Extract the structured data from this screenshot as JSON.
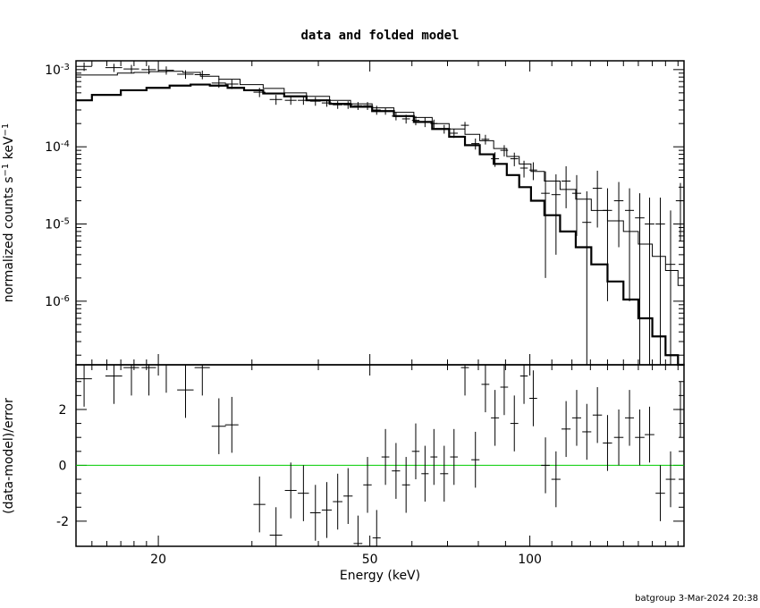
{
  "chart_data": {
    "type": "line",
    "title": "data and folded model",
    "footer": "batgroup  3-Mar-2024 20:38",
    "xlabel": "Energy (keV)",
    "xscale": "log",
    "xlim": [
      14,
      195
    ],
    "xticks": [
      {
        "v": 20,
        "label": "20"
      },
      {
        "v": 50,
        "label": "50"
      },
      {
        "v": 100,
        "label": "100"
      }
    ],
    "top_panel": {
      "ylabel": "normalized counts s^-1 keV^-1",
      "yscale": "log",
      "ylim": [
        1.5e-07,
        0.0013
      ],
      "yticks": [
        {
          "exp": -3,
          "v": 0.001
        },
        {
          "exp": -4,
          "v": 0.0001
        },
        {
          "exp": -5,
          "v": 1e-05
        },
        {
          "exp": -6,
          "v": 1e-06
        }
      ],
      "series": [
        {
          "style": "data crosses",
          "points": [
            [
              14.5,
              0.0011,
              0.5,
              0.00014
            ],
            [
              16.5,
              0.00106,
              0.6,
              0.00013
            ],
            [
              17.8,
              0.00102,
              0.6,
              0.00013
            ],
            [
              19.2,
              0.001,
              0.6,
              0.00013
            ],
            [
              20.7,
              0.00098,
              0.7,
              0.00012
            ],
            [
              22.5,
              0.00087,
              0.8,
              0.00011
            ],
            [
              24.2,
              0.00086,
              0.8,
              0.00011
            ],
            [
              26.0,
              0.00067,
              0.8,
              9e-05
            ],
            [
              27.5,
              0.00065,
              0.8,
              9e-05
            ],
            [
              31.0,
              0.00051,
              0.8,
              7e-05
            ],
            [
              33.3,
              0.00041,
              0.9,
              6e-05
            ],
            [
              35.5,
              0.0004,
              0.9,
              5e-05
            ],
            [
              37.5,
              0.0004,
              0.9,
              5e-05
            ],
            [
              39.5,
              0.00039,
              0.9,
              5e-05
            ],
            [
              41.5,
              0.00037,
              0.9,
              4e-05
            ],
            [
              43.5,
              0.00035,
              0.9,
              4e-05
            ],
            [
              45.5,
              0.00035,
              0.9,
              4e-05
            ],
            [
              47.5,
              0.00034,
              0.9,
              4e-05
            ],
            [
              49.5,
              0.00034,
              0.9,
              4e-05
            ],
            [
              51.5,
              0.0003,
              0.9,
              4e-05
            ],
            [
              53.5,
              0.00029,
              0.9,
              3e-05
            ],
            [
              56.0,
              0.00025,
              1,
              3e-05
            ],
            [
              58.5,
              0.00023,
              1,
              3e-05
            ],
            [
              61.0,
              0.00022,
              1,
              3e-05
            ],
            [
              63.5,
              0.00021,
              1,
              3e-05
            ],
            [
              66.0,
              0.0002,
              1,
              2.5e-05
            ],
            [
              69.0,
              0.00017,
              1.2,
              2.2e-05
            ],
            [
              72.0,
              0.00015,
              1.2,
              2e-05
            ],
            [
              75.5,
              0.00019,
              1.3,
              2e-05
            ],
            [
              79.0,
              0.00011,
              1.4,
              1.8e-05
            ],
            [
              82.5,
              0.000125,
              1.4,
              1.8e-05
            ],
            [
              86.0,
              7e-05,
              1.5,
              1.5e-05
            ],
            [
              89.5,
              9e-05,
              1.5,
              1.5e-05
            ],
            [
              93.5,
              7e-05,
              1.6,
              1.4e-05
            ],
            [
              97.5,
              5.3e-05,
              1.6,
              1.3e-05
            ],
            [
              101.5,
              5e-05,
              1.7,
              1.3e-05
            ],
            [
              107.0,
              2.5e-05,
              2,
              2.3e-05
            ],
            [
              112.0,
              2.4e-05,
              2.2,
              2e-05
            ],
            [
              117.0,
              3.6e-05,
              2.3,
              2e-05
            ],
            [
              122.5,
              2.5e-05,
              2.4,
              1.8e-05
            ],
            [
              128.0,
              1.05e-05,
              2.5,
              1.6e-05
            ],
            [
              134.0,
              2.9e-05,
              2.7,
              2e-05
            ],
            [
              140.0,
              1.5e-05,
              2.8,
              1.4e-05
            ],
            [
              147.0,
              2e-05,
              3,
              1.5e-05
            ],
            [
              154.0,
              1.5e-05,
              3,
              1.4e-05
            ],
            [
              161.0,
              1.2e-05,
              3.3,
              1.3e-05
            ],
            [
              168.0,
              1e-05,
              3.5,
              1.2e-05
            ],
            [
              176.0,
              1e-05,
              3.6,
              1.2e-05
            ],
            [
              184.0,
              3e-06,
              3.8,
              1.2e-05
            ],
            [
              192.0,
              2e-05,
              3.8,
              1.4e-05
            ]
          ]
        },
        {
          "style": "model thin",
          "points": [
            [
              14,
              0.00085
            ],
            [
              16,
              0.00085
            ],
            [
              17.5,
              0.0009
            ],
            [
              18.5,
              0.00092
            ],
            [
              20,
              0.00094
            ],
            [
              21.5,
              0.00095
            ],
            [
              23,
              0.00092
            ],
            [
              25,
              0.00082
            ],
            [
              27,
              0.00075
            ],
            [
              30,
              0.00064
            ],
            [
              33,
              0.00057
            ],
            [
              36,
              0.0005
            ],
            [
              40,
              0.00045
            ],
            [
              44,
              0.0004
            ],
            [
              48,
              0.00036
            ],
            [
              53,
              0.00032
            ],
            [
              58,
              0.00028
            ],
            [
              63,
              0.00024
            ],
            [
              68,
              0.0002
            ],
            [
              73,
              0.00017
            ],
            [
              78,
              0.000145
            ],
            [
              83,
              0.00012
            ],
            [
              88,
              9.5e-05
            ],
            [
              93,
              7.5e-05
            ],
            [
              98,
              6e-05
            ],
            [
              103,
              4.8e-05
            ],
            [
              110,
              3.6e-05
            ],
            [
              118,
              2.8e-05
            ],
            [
              126,
              2.1e-05
            ],
            [
              135,
              1.5e-05
            ],
            [
              145,
              1.1e-05
            ],
            [
              155,
              8e-06
            ],
            [
              165,
              5.5e-06
            ],
            [
              175,
              3.8e-06
            ],
            [
              185,
              2.5e-06
            ],
            [
              195,
              1.6e-06
            ]
          ]
        },
        {
          "style": "model thick",
          "points": [
            [
              14,
              0.0004
            ],
            [
              16,
              0.00047
            ],
            [
              18,
              0.00054
            ],
            [
              20,
              0.00058
            ],
            [
              22,
              0.00062
            ],
            [
              24,
              0.00064
            ],
            [
              26,
              0.00062
            ],
            [
              28,
              0.00058
            ],
            [
              30,
              0.00054
            ],
            [
              33,
              0.00049
            ],
            [
              36,
              0.00045
            ],
            [
              40,
              0.0004
            ],
            [
              44,
              0.00036
            ],
            [
              48,
              0.00033
            ],
            [
              53,
              0.00029
            ],
            [
              58,
              0.00025
            ],
            [
              63,
              0.00021
            ],
            [
              68,
              0.00017
            ],
            [
              73,
              0.000135
            ],
            [
              78,
              0.000105
            ],
            [
              83,
              8e-05
            ],
            [
              88,
              6e-05
            ],
            [
              93,
              4.3e-05
            ],
            [
              98,
              3e-05
            ],
            [
              103,
              2e-05
            ],
            [
              110,
              1.3e-05
            ],
            [
              118,
              8e-06
            ],
            [
              126,
              5e-06
            ],
            [
              135,
              3e-06
            ],
            [
              145,
              1.8e-06
            ],
            [
              155,
              1.05e-06
            ],
            [
              165,
              6e-07
            ],
            [
              175,
              3.5e-07
            ],
            [
              185,
              2e-07
            ],
            [
              195,
              1.2e-07
            ]
          ]
        }
      ]
    },
    "bottom_panel": {
      "ylabel": "(data-model)/error",
      "ylim": [
        -2.9,
        3.6
      ],
      "yticks": [
        {
          "v": 2,
          "label": "2"
        },
        {
          "v": 0,
          "label": "0"
        },
        {
          "v": -2,
          "label": "-2"
        }
      ],
      "zero_line_color": "#00cc00",
      "points": [
        [
          14.5,
          3.1,
          0.5,
          1
        ],
        [
          16.5,
          3.2,
          0.6,
          1
        ],
        [
          17.8,
          3.5,
          0.6,
          1
        ],
        [
          19.2,
          3.5,
          0.6,
          1
        ],
        [
          20.7,
          3.6,
          0.7,
          1
        ],
        [
          22.5,
          2.7,
          0.8,
          1
        ],
        [
          24.2,
          3.5,
          0.8,
          1
        ],
        [
          26.0,
          1.4,
          0.8,
          1
        ],
        [
          27.5,
          1.45,
          0.8,
          1
        ],
        [
          31.0,
          -1.4,
          0.8,
          1
        ],
        [
          33.3,
          -2.5,
          0.9,
          1
        ],
        [
          35.5,
          -0.9,
          0.9,
          1
        ],
        [
          37.5,
          -1.0,
          0.9,
          1
        ],
        [
          39.5,
          -1.7,
          0.9,
          1
        ],
        [
          41.5,
          -1.6,
          0.9,
          1
        ],
        [
          43.5,
          -1.3,
          0.9,
          1
        ],
        [
          45.5,
          -1.1,
          0.9,
          1
        ],
        [
          47.5,
          -2.8,
          0.9,
          1
        ],
        [
          49.5,
          -0.7,
          0.9,
          1
        ],
        [
          51.5,
          -2.6,
          0.9,
          1
        ],
        [
          53.5,
          0.3,
          0.9,
          1
        ],
        [
          56.0,
          -0.2,
          1,
          1
        ],
        [
          58.5,
          -0.7,
          1,
          1
        ],
        [
          61.0,
          0.5,
          1,
          1
        ],
        [
          63.5,
          -0.3,
          1,
          1
        ],
        [
          66.0,
          0.3,
          1,
          1
        ],
        [
          69.0,
          -0.3,
          1.2,
          1
        ],
        [
          72.0,
          0.3,
          1.2,
          1
        ],
        [
          75.5,
          3.5,
          1.3,
          1
        ],
        [
          79.0,
          0.2,
          1.4,
          1
        ],
        [
          82.5,
          2.9,
          1.4,
          1
        ],
        [
          86.0,
          1.7,
          1.5,
          1
        ],
        [
          89.5,
          2.8,
          1.5,
          1
        ],
        [
          93.5,
          1.5,
          1.6,
          1
        ],
        [
          97.5,
          3.2,
          1.6,
          1
        ],
        [
          101.5,
          2.4,
          1.7,
          1
        ],
        [
          107.0,
          0.0,
          2,
          1
        ],
        [
          112.0,
          -0.5,
          2.2,
          1
        ],
        [
          117.0,
          1.3,
          2.3,
          1
        ],
        [
          122.5,
          1.7,
          2.4,
          1
        ],
        [
          128.0,
          1.2,
          2.5,
          1
        ],
        [
          134.0,
          1.8,
          2.7,
          1
        ],
        [
          140.0,
          0.8,
          2.8,
          1
        ],
        [
          147.0,
          1.0,
          3,
          1
        ],
        [
          154.0,
          1.7,
          3,
          1
        ],
        [
          161.0,
          1.0,
          3.3,
          1
        ],
        [
          168.0,
          1.1,
          3.5,
          1
        ],
        [
          176.0,
          -1.0,
          3.6,
          1
        ],
        [
          184.0,
          -0.5,
          3.8,
          1
        ],
        [
          192.0,
          2.0,
          3.8,
          1
        ]
      ]
    }
  }
}
